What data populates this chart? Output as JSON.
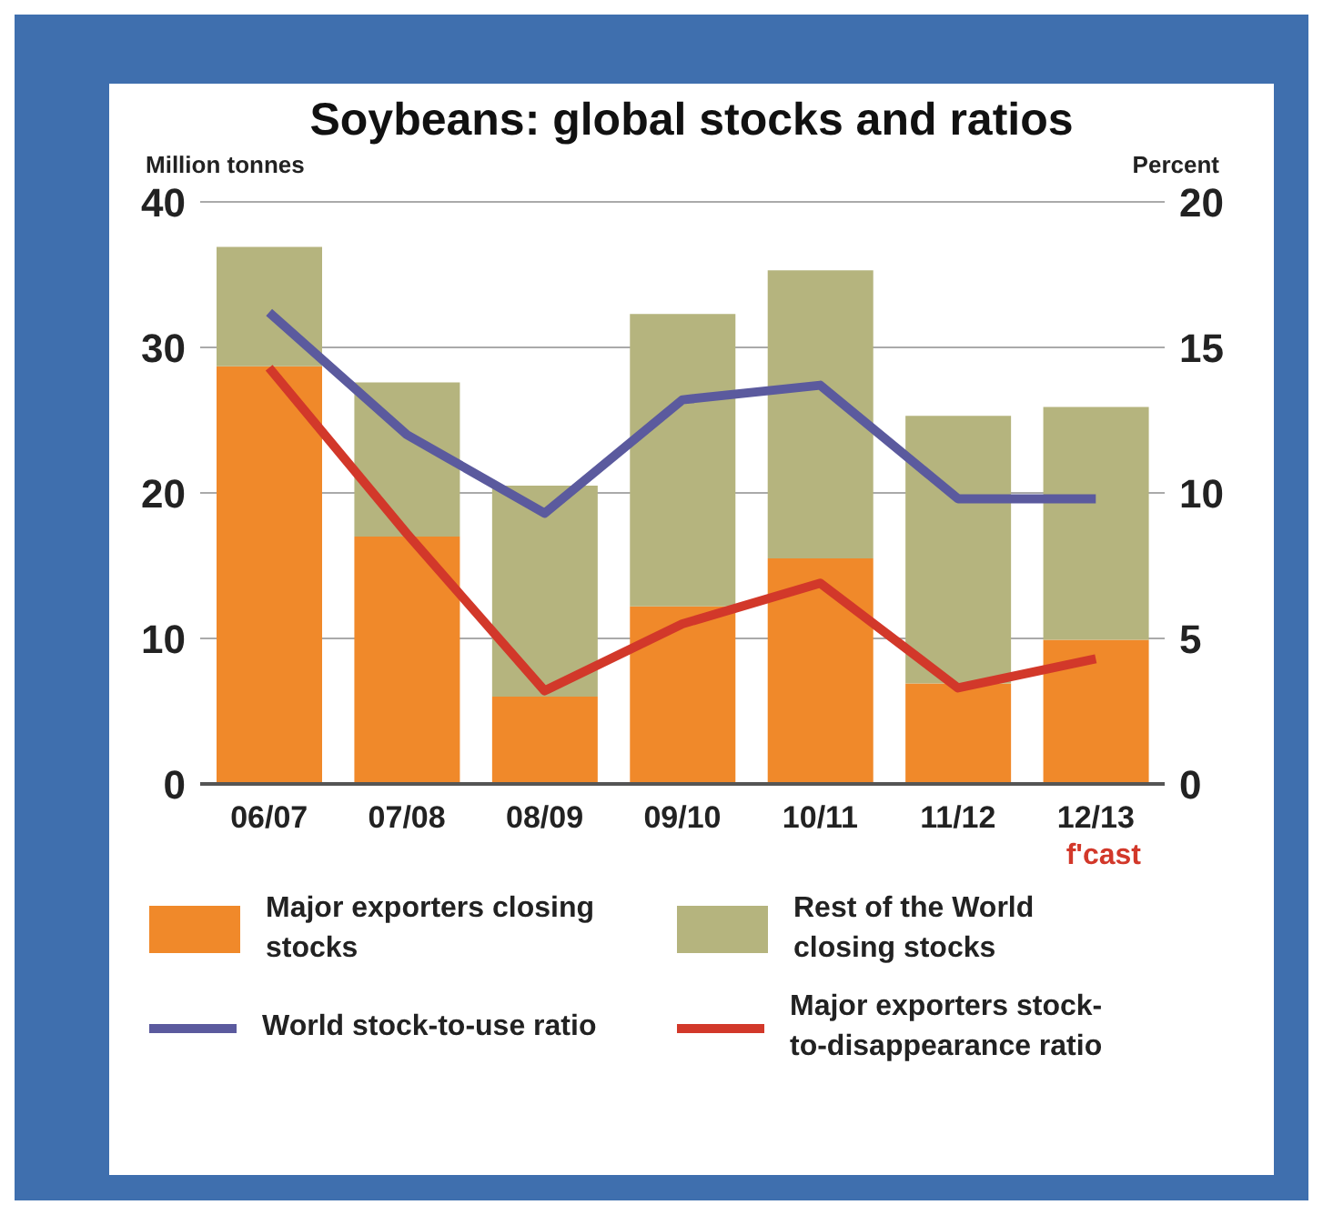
{
  "chart_data": {
    "type": "bar",
    "title": "Soybeans: global stocks and ratios",
    "ylabel": "Million tonnes",
    "y2label": "Percent",
    "categories": [
      "06/07",
      "07/08",
      "08/09",
      "09/10",
      "10/11",
      "11/12",
      "12/13"
    ],
    "stacked": true,
    "series": [
      {
        "name": "Major exporters closing stocks",
        "color": "#f0892a",
        "values": [
          28.7,
          17.0,
          6.0,
          12.2,
          15.5,
          6.9,
          9.9
        ]
      },
      {
        "name": "Rest of the World closing stocks",
        "color": "#b5b47e",
        "values": [
          8.2,
          10.6,
          14.5,
          20.1,
          19.8,
          18.4,
          16.0
        ]
      },
      {
        "name": "World stock-to-use ratio",
        "type": "line",
        "axis": "y2",
        "color": "#5b5a9e",
        "values": [
          16.2,
          12.0,
          9.3,
          13.2,
          13.7,
          9.8,
          9.8
        ]
      },
      {
        "name": "Major exporters stock-to-disappearance ratio",
        "type": "line",
        "axis": "y2",
        "color": "#d2382a",
        "values": [
          14.3,
          8.6,
          3.2,
          5.5,
          6.9,
          3.3,
          4.3
        ]
      }
    ],
    "ylim": [
      0,
      40
    ],
    "yticks": [
      0,
      10,
      20,
      30,
      40
    ],
    "y2lim": [
      0,
      20
    ],
    "y2ticks": [
      0,
      5,
      10,
      15,
      20
    ],
    "grid": "y",
    "legend": "bottom",
    "marker": "none",
    "annotations": [
      "f'cast"
    ]
  }
}
